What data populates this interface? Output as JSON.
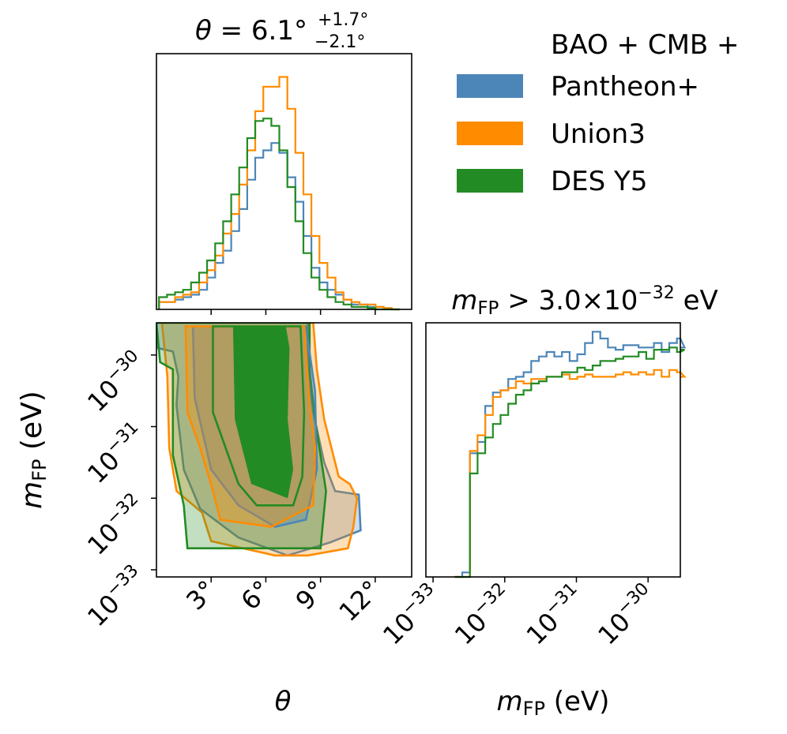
{
  "chart_data": {
    "type": "corner",
    "legend": {
      "header": "BAO + CMB +",
      "entries": [
        "Pantheon+",
        "Union3",
        "DES Y5"
      ]
    },
    "colors": {
      "Pantheon+": "#4c86b8",
      "Union3": "#ff8c00",
      "DES Y5": "#238b23"
    },
    "panels": [
      {
        "id": "theta_marginal",
        "type": "histogram",
        "title": {
          "param": "θ",
          "value": "6.1°",
          "upper": "+1.7°",
          "lower": "−2.1°"
        },
        "x": {
          "range": [
            0,
            14
          ],
          "ticks": [
            3,
            6,
            9,
            12
          ],
          "tick_labels": [
            "3°",
            "6°",
            "9°",
            "12°"
          ],
          "label": "θ"
        },
        "bins": {
          "start": 0.14,
          "width": 0.44,
          "series": [
            {
              "name": "Pantheon+",
              "counts": [
                0.03,
                0.03,
                0.04,
                0.05,
                0.06,
                0.08,
                0.13,
                0.19,
                0.24,
                0.32,
                0.41,
                0.53,
                0.62,
                0.65,
                0.68,
                0.64,
                0.54,
                0.44,
                0.3,
                0.17,
                0.11,
                0.08,
                0.06,
                0.04,
                0.02,
                0.02,
                0.01,
                0.01,
                0.005,
                0.0
              ]
            },
            {
              "name": "Union3",
              "counts": [
                0.03,
                0.03,
                0.05,
                0.06,
                0.07,
                0.11,
                0.16,
                0.22,
                0.31,
                0.39,
                0.51,
                0.65,
                0.81,
                0.91,
                0.91,
                0.95,
                0.82,
                0.64,
                0.47,
                0.3,
                0.19,
                0.13,
                0.07,
                0.04,
                0.03,
                0.02,
                0.02,
                0.01,
                0.005,
                0.0
              ]
            },
            {
              "name": "DES Y5",
              "counts": [
                0.05,
                0.06,
                0.07,
                0.08,
                0.11,
                0.15,
                0.2,
                0.27,
                0.36,
                0.47,
                0.58,
                0.7,
                0.77,
                0.78,
                0.75,
                0.65,
                0.5,
                0.36,
                0.23,
                0.13,
                0.08,
                0.05,
                0.03,
                0.02,
                0.01,
                0.01,
                0.005,
                0.0,
                0.0,
                0.0
              ]
            }
          ]
        }
      },
      {
        "id": "joint",
        "type": "contour",
        "x": {
          "range": [
            0,
            14
          ],
          "ticks": [
            3,
            6,
            9,
            12
          ]
        },
        "y": {
          "log10_range": [
            -33.1,
            -29.55
          ],
          "ticks": [
            -33,
            -32,
            -31,
            -30
          ],
          "tick_labels": [
            "10−33",
            "10−32",
            "10−31",
            "10−30"
          ],
          "label": "mFP (eV)"
        },
        "levels": [
          "68%",
          "95%"
        ],
        "series": [
          {
            "name": "Pantheon+",
            "outer": [
              [
                0,
                -29.9
              ],
              [
                0.9,
                -29.95
              ],
              [
                1.2,
                -30.3
              ],
              [
                1.1,
                -30.7
              ],
              [
                1.5,
                -31.6
              ],
              [
                2.4,
                -32.15
              ],
              [
                4.5,
                -32.55
              ],
              [
                7.2,
                -32.8
              ],
              [
                9.5,
                -32.62
              ],
              [
                11.2,
                -32.45
              ],
              [
                11.1,
                -31.95
              ],
              [
                9.8,
                -31.9
              ],
              [
                9.2,
                -31.5
              ],
              [
                8.6,
                -30.8
              ],
              [
                8.3,
                -30.2
              ],
              [
                8.3,
                -29.55
              ],
              [
                0,
                -29.55
              ]
            ],
            "inner": [
              [
                2.0,
                -29.6
              ],
              [
                2.1,
                -30.6
              ],
              [
                3.0,
                -31.6
              ],
              [
                4.5,
                -32.1
              ],
              [
                6.5,
                -32.4
              ],
              [
                8.2,
                -32.3
              ],
              [
                8.8,
                -31.6
              ],
              [
                8.7,
                -30.5
              ],
              [
                8.2,
                -29.6
              ]
            ]
          },
          {
            "name": "Union3",
            "outer": [
              [
                0.3,
                -29.55
              ],
              [
                0.6,
                -30.3
              ],
              [
                0.7,
                -31.3
              ],
              [
                1.1,
                -31.9
              ],
              [
                2.5,
                -32.2
              ],
              [
                3.0,
                -32.6
              ],
              [
                6.5,
                -32.8
              ],
              [
                8.3,
                -32.8
              ],
              [
                10.5,
                -32.7
              ],
              [
                10.8,
                -32.4
              ],
              [
                11.0,
                -32.0
              ],
              [
                10.6,
                -31.8
              ],
              [
                10.0,
                -31.7
              ],
              [
                9.2,
                -30.9
              ],
              [
                8.8,
                -30.2
              ],
              [
                8.6,
                -29.55
              ]
            ],
            "inner": [
              [
                1.6,
                -29.6
              ],
              [
                1.7,
                -30.8
              ],
              [
                2.4,
                -31.3
              ],
              [
                3.1,
                -31.9
              ],
              [
                3.5,
                -32.3
              ],
              [
                6.3,
                -32.4
              ],
              [
                8.6,
                -32.1
              ],
              [
                8.7,
                -31.3
              ],
              [
                8.4,
                -30.7
              ],
              [
                8.1,
                -29.6
              ]
            ]
          },
          {
            "name": "DES Y5",
            "outer": [
              [
                0.2,
                -30.1
              ],
              [
                0.9,
                -30.2
              ],
              [
                0.9,
                -31.4
              ],
              [
                1.5,
                -32.1
              ],
              [
                1.7,
                -32.7
              ],
              [
                9.0,
                -32.7
              ],
              [
                9.3,
                -31.9
              ],
              [
                8.7,
                -30.9
              ],
              [
                8.4,
                -30.2
              ],
              [
                8.4,
                -29.55
              ],
              [
                0,
                -29.55
              ]
            ],
            "inner": [
              [
                3.1,
                -29.6
              ],
              [
                3.1,
                -30.8
              ],
              [
                4.5,
                -31.8
              ],
              [
                5.5,
                -32.1
              ],
              [
                7.5,
                -32.1
              ],
              [
                8.0,
                -31.7
              ],
              [
                8.1,
                -30.8
              ],
              [
                7.9,
                -29.6
              ]
            ],
            "core": [
              [
                4.2,
                -29.6
              ],
              [
                4.3,
                -30.9
              ],
              [
                5.2,
                -31.8
              ],
              [
                7.2,
                -32.0
              ],
              [
                7.5,
                -31.6
              ],
              [
                7.2,
                -30.9
              ],
              [
                7.3,
                -29.9
              ],
              [
                7.1,
                -29.6
              ]
            ]
          }
        ]
      },
      {
        "id": "mfp_marginal",
        "type": "histogram",
        "title": {
          "param": "mFP",
          "relation": ">",
          "value": "3.0×10−32 eV"
        },
        "x": {
          "log10_range": [
            -33.1,
            -29.55
          ],
          "ticks": [
            -33,
            -32,
            -31,
            -30
          ],
          "tick_labels": [
            "10−33",
            "10−32",
            "10−31",
            "10−30"
          ],
          "label": "mFP (eV)"
        },
        "bins": {
          "start": -32.7,
          "width": 0.107,
          "series": [
            {
              "name": "Pantheon+",
              "counts": [
                0.0,
                0.02,
                0.55,
                0.6,
                0.76,
                0.82,
                0.83,
                0.88,
                0.89,
                0.91,
                0.96,
                0.98,
                1.0,
                0.98,
                1.0,
                0.96,
                0.99,
                1.04,
                1.09,
                1.06,
                1.02,
                1.01,
                1.03,
                1.03,
                1.02,
                1.02,
                1.04,
                1.0,
                1.04,
                1.06,
                1.02
              ]
            },
            {
              "name": "Union3",
              "counts": [
                0.0,
                0.0,
                0.56,
                0.63,
                0.72,
                0.8,
                0.83,
                0.84,
                0.87,
                0.86,
                0.88,
                0.88,
                0.89,
                0.89,
                0.9,
                0.88,
                0.89,
                0.9,
                0.89,
                0.89,
                0.89,
                0.9,
                0.91,
                0.9,
                0.91,
                0.9,
                0.92,
                0.89,
                0.92,
                0.91,
                0.89
              ]
            },
            {
              "name": "DES Y5",
              "counts": [
                0.0,
                0.0,
                0.46,
                0.55,
                0.62,
                0.68,
                0.72,
                0.77,
                0.81,
                0.83,
                0.86,
                0.87,
                0.89,
                0.89,
                0.91,
                0.91,
                0.93,
                0.92,
                0.94,
                0.96,
                0.96,
                0.97,
                0.98,
                0.98,
                1.0,
                0.97,
                1.01,
                1.01,
                1.02,
                1.0,
                1.01
              ]
            }
          ]
        }
      }
    ]
  }
}
